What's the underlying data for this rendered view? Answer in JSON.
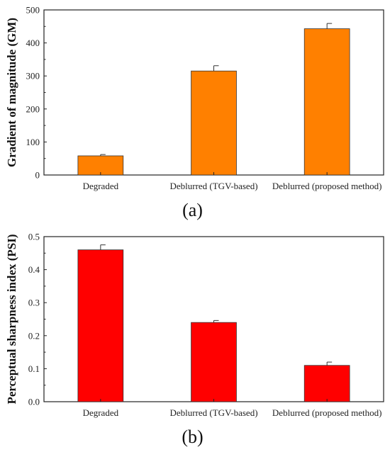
{
  "chart_data": [
    {
      "type": "bar",
      "panel_label": "(a)",
      "ylabel": "Gradient of magnitude (GM)",
      "categories": [
        "Degraded",
        "Deblurred (TGV-based)",
        "Deblurred (proposed method)"
      ],
      "values": [
        58,
        315,
        443
      ],
      "errors": [
        4,
        16,
        16
      ],
      "ylim": [
        0,
        500
      ],
      "yticks": [
        0,
        100,
        200,
        300,
        400,
        500
      ],
      "ytick_labels": [
        "0",
        "100",
        "200",
        "300",
        "400",
        "500"
      ],
      "bar_color": "#ff8000",
      "grid": false
    },
    {
      "type": "bar",
      "panel_label": "(b)",
      "ylabel": "Perceptual sharpness index (PSI)",
      "categories": [
        "Degraded",
        "Deblurred (TGV-based)",
        "Deblurred (proposed method)"
      ],
      "values": [
        0.46,
        0.24,
        0.11
      ],
      "errors": [
        0.015,
        0.006,
        0.01
      ],
      "ylim": [
        0,
        0.5
      ],
      "yticks": [
        0,
        0.1,
        0.2,
        0.3,
        0.4,
        0.5
      ],
      "ytick_labels": [
        "0.0",
        "0.1",
        "0.2",
        "0.3",
        "0.4",
        "0.5"
      ],
      "bar_color": "#ff0000",
      "grid": false
    }
  ]
}
